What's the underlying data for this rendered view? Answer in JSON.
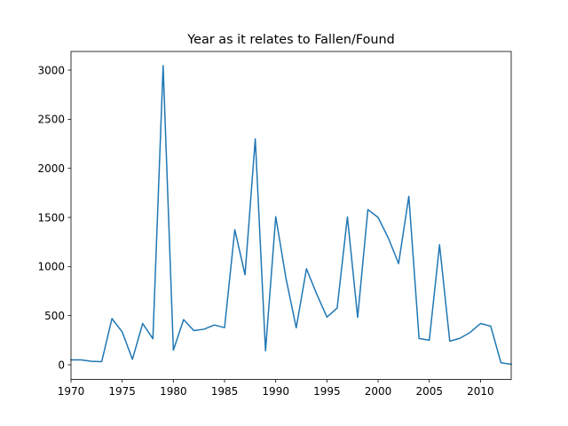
{
  "chart_data": {
    "type": "line",
    "title": "Year as it relates to Fallen/Found",
    "xlabel": "",
    "ylabel": "",
    "xlim": [
      1970,
      2013
    ],
    "ylim": [
      -150,
      3190
    ],
    "x_ticks": [
      1970,
      1975,
      1980,
      1985,
      1990,
      1995,
      2000,
      2005,
      2010
    ],
    "y_ticks": [
      0,
      500,
      1000,
      1500,
      2000,
      2500,
      3000
    ],
    "grid": false,
    "legend": "none",
    "line_color": "#1f77b4",
    "series": [
      {
        "x": [
          1970,
          1971,
          1972,
          1973,
          1974,
          1975,
          1976,
          1977,
          1978,
          1979,
          1980,
          1981,
          1982,
          1983,
          1984,
          1985,
          1986,
          1987,
          1988,
          1989,
          1990,
          1991,
          1992,
          1993,
          1994,
          1995,
          1996,
          1997,
          1998,
          1999,
          2000,
          2001,
          2002,
          2003,
          2004,
          2005,
          2006,
          2007,
          2008,
          2009,
          2010,
          2011,
          2012,
          2013
        ],
        "values": [
          50,
          50,
          35,
          32,
          470,
          335,
          55,
          420,
          265,
          3045,
          148,
          460,
          348,
          362,
          405,
          378,
          1375,
          917,
          2300,
          142,
          1508,
          880,
          376,
          977,
          720,
          485,
          578,
          1505,
          483,
          1580,
          1500,
          1290,
          1030,
          1715,
          268,
          250,
          1222,
          240,
          270,
          330,
          420,
          393,
          20,
          5
        ]
      }
    ]
  }
}
